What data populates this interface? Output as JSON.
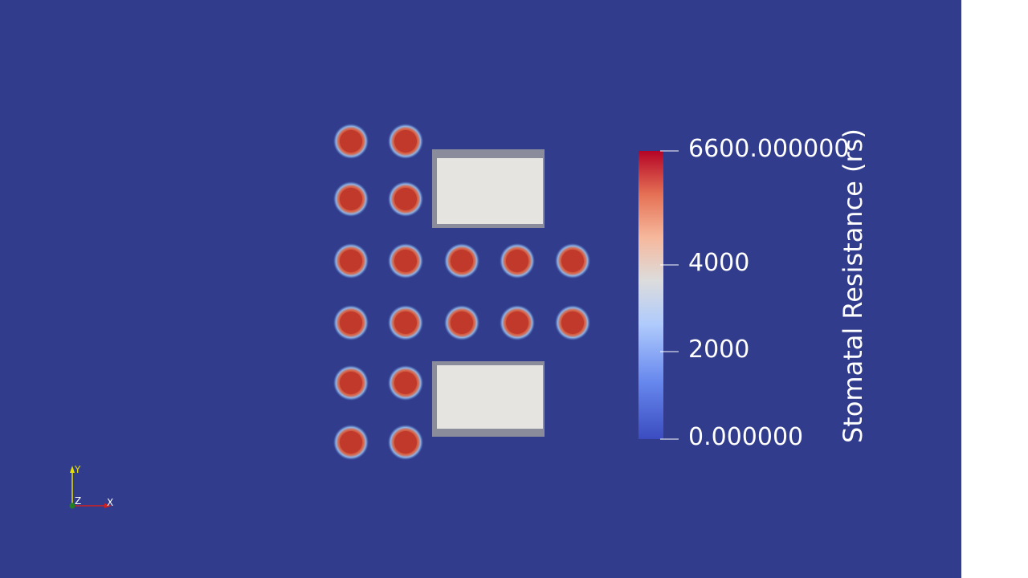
{
  "colors": {
    "background": "#313c8c",
    "building_fill": "#e6e4e0",
    "building_shadow": "#8a8c9c",
    "tree_core": "#c0392b",
    "tree_halo": "#79a9e0",
    "colormap_low": "#3b4cc0",
    "colormap_mid": "#dddcdc",
    "colormap_high": "#b40426",
    "axis_x": "#d02020",
    "axis_y": "#e8e000",
    "axis_z": "#208020"
  },
  "legend": {
    "title": "Stomatal Resistance (rs)",
    "max_label": "6600.000000",
    "tick_4000": "4000",
    "tick_2000": "2000",
    "min_label": "0.000000",
    "range": [
      0,
      6600
    ],
    "ticks": [
      0,
      2000,
      4000,
      6600
    ]
  },
  "axes_widget": {
    "x_label": "X",
    "y_label": "Y",
    "z_label": "Z"
  },
  "scene": {
    "tree_count": 18,
    "building_count": 2
  }
}
